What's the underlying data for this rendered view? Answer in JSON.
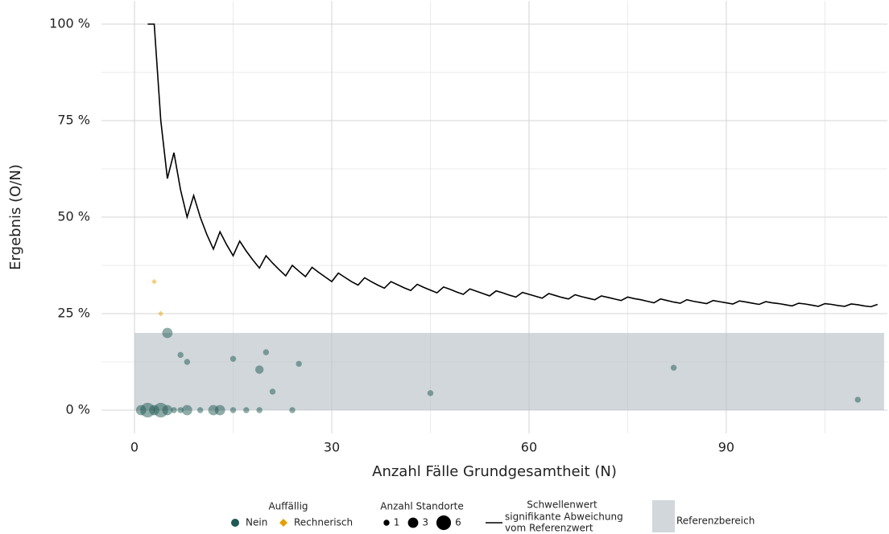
{
  "chart_data": {
    "type": "scatter",
    "x_label": "Anzahl Fälle Grundgesamtheit (N)",
    "y_label": "Ergebnis (O/N)",
    "xlim": [
      -5,
      114.5
    ],
    "ylim": [
      -6,
      106
    ],
    "xticks": [
      0,
      30,
      60,
      90
    ],
    "xminorticks": [
      15,
      45,
      75,
      105
    ],
    "yticks": [
      {
        "value": 0,
        "label": "0 %"
      },
      {
        "value": 25,
        "label": "25 %"
      },
      {
        "value": 50,
        "label": "50 %"
      },
      {
        "value": 75,
        "label": "75 %"
      },
      {
        "value": 100,
        "label": "100 %"
      }
    ],
    "yminorticks": [
      12.5,
      37.5,
      62.5,
      87.5
    ],
    "grid": true,
    "legend_title": "Auffällig",
    "size_legend": {
      "title": "Anzahl Standorte",
      "values": [
        1,
        3,
        6
      ]
    },
    "series": [
      {
        "name": "Nein",
        "color": "#1f5a54",
        "opacity": 0.5,
        "x": [
          1,
          2,
          3,
          4,
          5,
          6,
          7,
          8,
          10,
          12,
          13,
          15,
          17,
          19,
          24,
          5,
          7,
          8,
          15,
          20,
          19,
          21,
          25,
          45,
          82,
          110
        ],
        "values": [
          0,
          0,
          0,
          0,
          0,
          0,
          0,
          0,
          0,
          0,
          0,
          0,
          0,
          0,
          0,
          20,
          14.3,
          12.5,
          13.3,
          15,
          10.5,
          4.8,
          12,
          4.4,
          11,
          2.7
        ],
        "sizes": [
          3,
          6,
          3,
          6,
          3,
          1,
          1,
          3,
          1,
          3,
          3,
          1,
          1,
          1,
          1,
          3,
          1,
          1,
          1,
          1,
          2,
          1,
          1,
          1,
          1,
          1
        ]
      },
      {
        "name": "Rechnerisch",
        "color": "#e69f00",
        "opacity": 0.5,
        "x": [
          3,
          4
        ],
        "values": [
          33.3,
          25
        ],
        "sizes": [
          1,
          1
        ]
      }
    ],
    "threshold": {
      "title": "Schwellenwert",
      "lines": [
        "signifikante Abweichung",
        "vom Referenzwert"
      ],
      "color": "#000000",
      "x": [
        2,
        3,
        4,
        5,
        6,
        7,
        8,
        9,
        10,
        11,
        12,
        13,
        14,
        15,
        16,
        17,
        18,
        19,
        20,
        21,
        22,
        23,
        24,
        25,
        26,
        27,
        28,
        29,
        30,
        31,
        32,
        33,
        34,
        35,
        36,
        37,
        38,
        39,
        40,
        41,
        42,
        43,
        44,
        45,
        46,
        47,
        48,
        49,
        50,
        51,
        52,
        53,
        54,
        55,
        56,
        57,
        58,
        59,
        60,
        61,
        62,
        63,
        64,
        65,
        66,
        67,
        68,
        69,
        70,
        71,
        72,
        73,
        74,
        75,
        76,
        77,
        78,
        79,
        80,
        81,
        82,
        83,
        84,
        85,
        86,
        87,
        88,
        89,
        90,
        91,
        92,
        93,
        94,
        95,
        96,
        97,
        98,
        99,
        100,
        101,
        102,
        103,
        104,
        105,
        106,
        107,
        108,
        109,
        110,
        111,
        112,
        113
      ],
      "values": [
        100,
        100,
        75,
        60,
        66.7,
        57.1,
        50,
        55.6,
        50,
        45.5,
        41.7,
        46.2,
        42.9,
        40,
        43.8,
        41.2,
        38.9,
        36.8,
        40,
        38.1,
        36.4,
        34.8,
        37.5,
        36,
        34.6,
        37,
        35.7,
        34.5,
        33.3,
        35.5,
        34.4,
        33.3,
        32.4,
        34.3,
        33.3,
        32.4,
        31.6,
        33.3,
        32.5,
        31.7,
        31,
        32.6,
        31.8,
        31.1,
        30.4,
        31.9,
        31.3,
        30.6,
        30,
        31.4,
        30.8,
        30.2,
        29.6,
        30.9,
        30.4,
        29.8,
        29.3,
        30.5,
        30,
        29.5,
        29,
        30.2,
        29.7,
        29.2,
        28.8,
        29.9,
        29.4,
        29,
        28.6,
        29.6,
        29.2,
        28.8,
        28.4,
        29.3,
        28.9,
        28.6,
        28.2,
        27.8,
        28.8,
        28.4,
        28,
        27.7,
        28.6,
        28.2,
        27.9,
        27.6,
        28.4,
        28.1,
        27.8,
        27.5,
        28.3,
        28,
        27.7,
        27.4,
        28.1,
        27.8,
        27.6,
        27.3,
        27,
        27.7,
        27.5,
        27.2,
        26.9,
        27.6,
        27.4,
        27.1,
        26.9,
        27.5,
        27.3,
        27,
        26.8,
        27.4
      ]
    },
    "reference": {
      "name": "Referenzbereich",
      "xlim": [
        0,
        114
      ],
      "ylim": [
        0,
        20
      ],
      "color": "#b9c1c7"
    }
  }
}
